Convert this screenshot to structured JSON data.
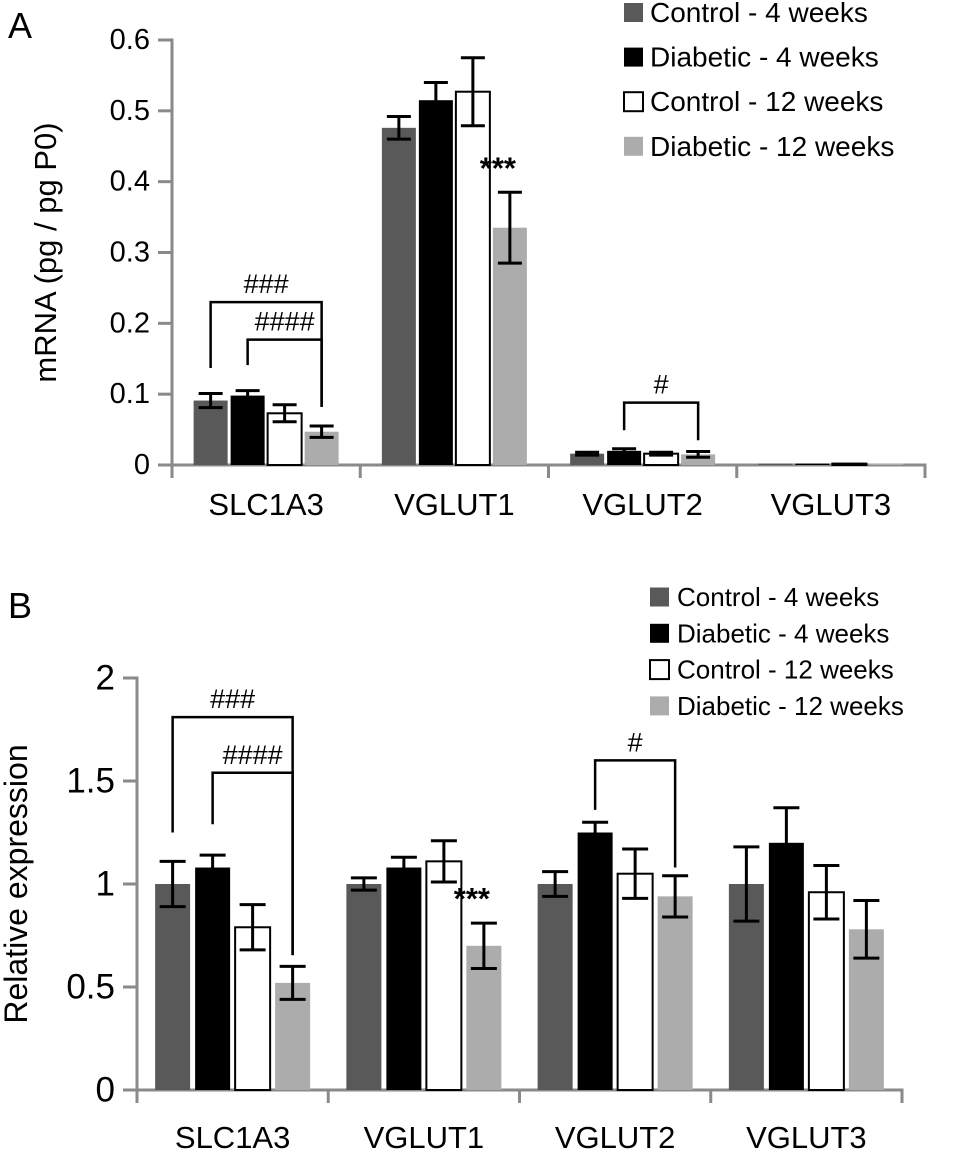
{
  "figure": {
    "panel_letters": [
      "A",
      "B"
    ],
    "colors": {
      "axis": "#8a8a8a",
      "text": "#000000",
      "error_bar": "#000000",
      "bracket": "#000000"
    }
  },
  "chart_data": [
    {
      "type": "bar",
      "panel": "A",
      "title": "",
      "xlabel": "",
      "ylabel": "mRNA (pg / pg P0)",
      "categories": [
        "SLC1A3",
        "VGLUT1",
        "VGLUT2",
        "VGLUT3"
      ],
      "ylim": [
        0,
        0.6
      ],
      "yticks": [
        {
          "value": 0,
          "label": "0"
        },
        {
          "value": 0.1,
          "label": "0.1"
        },
        {
          "value": 0.2,
          "label": "0.2"
        },
        {
          "value": 0.3,
          "label": "0.3"
        },
        {
          "value": 0.4,
          "label": "0.4"
        },
        {
          "value": 0.5,
          "label": "0.5"
        },
        {
          "value": 0.6,
          "label": "0.6"
        }
      ],
      "grid": false,
      "legend_position": "top-right",
      "series": [
        {
          "name": "Control - 4 weeks",
          "color": "#595959",
          "border": null,
          "values": [
            0.091,
            0.476,
            0.016,
            0.002
          ],
          "errors": [
            0.01,
            0.016,
            0.002,
            0
          ]
        },
        {
          "name": "Diabetic - 4 weeks",
          "color": "#000000",
          "border": null,
          "values": [
            0.098,
            0.515,
            0.02,
            0.002
          ],
          "errors": [
            0.007,
            0.025,
            0.003,
            0
          ]
        },
        {
          "name": "Control - 12 weeks",
          "color": "#ffffff",
          "border": "#000000",
          "values": [
            0.073,
            0.527,
            0.016,
            0.002
          ],
          "errors": [
            0.012,
            0.048,
            0.002,
            0
          ]
        },
        {
          "name": "Diabetic - 12 weeks",
          "color": "#acacac",
          "border": null,
          "values": [
            0.047,
            0.335,
            0.015,
            0.002
          ],
          "errors": [
            0.008,
            0.05,
            0.004,
            0
          ]
        }
      ],
      "annotations": {
        "brackets": [
          {
            "label": "###",
            "category": "SLC1A3",
            "from_series": 0,
            "to_series": 3,
            "top": 0.23,
            "left_drop": 0.137,
            "right_drop": 0.082
          },
          {
            "label": "####",
            "category": "SLC1A3",
            "from_series": 1,
            "to_series": 3,
            "top": 0.177,
            "left_drop": 0.141,
            "right_drop": 0.082
          },
          {
            "label": "#",
            "category": "VGLUT2",
            "from_series": 1,
            "to_series": 3,
            "top": 0.088,
            "left_drop": 0.049,
            "right_drop": 0.035
          }
        ],
        "stars": [
          {
            "label": "***",
            "category": "VGLUT1",
            "series": 3
          }
        ]
      }
    },
    {
      "type": "bar",
      "panel": "B",
      "title": "",
      "xlabel": "",
      "ylabel": "Relative expression",
      "categories": [
        "SLC1A3",
        "VGLUT1",
        "VGLUT2",
        "VGLUT3"
      ],
      "ylim": [
        0,
        2
      ],
      "yticks": [
        {
          "value": 0,
          "label": "0"
        },
        {
          "value": 0.5,
          "label": "0.5"
        },
        {
          "value": 1,
          "label": "1"
        },
        {
          "value": 1.5,
          "label": "1.5"
        },
        {
          "value": 2,
          "label": "2"
        }
      ],
      "grid": false,
      "legend_position": "top-right",
      "series": [
        {
          "name": "Control - 4 weeks",
          "color": "#595959",
          "border": null,
          "values": [
            1.0,
            1.0,
            1.0,
            1.0
          ],
          "errors": [
            0.11,
            0.03,
            0.06,
            0.18
          ]
        },
        {
          "name": "Diabetic - 4 weeks",
          "color": "#000000",
          "border": null,
          "values": [
            1.08,
            1.08,
            1.25,
            1.2
          ],
          "errors": [
            0.06,
            0.05,
            0.05,
            0.17
          ]
        },
        {
          "name": "Control - 12 weeks",
          "color": "#ffffff",
          "border": "#000000",
          "values": [
            0.79,
            1.11,
            1.05,
            0.96
          ],
          "errors": [
            0.11,
            0.1,
            0.12,
            0.13
          ]
        },
        {
          "name": "Diabetic - 12 weeks",
          "color": "#acacac",
          "border": null,
          "values": [
            0.52,
            0.7,
            0.94,
            0.78
          ],
          "errors": [
            0.08,
            0.11,
            0.1,
            0.14
          ]
        }
      ],
      "annotations": {
        "brackets": [
          {
            "label": "###",
            "category": "SLC1A3",
            "from_series": 0,
            "to_series": 3,
            "top": 1.81,
            "left_drop": 1.25,
            "right_drop": 0.655
          },
          {
            "label": "####",
            "category": "SLC1A3",
            "from_series": 1,
            "to_series": 3,
            "top": 1.54,
            "left_drop": 1.29,
            "right_drop": 0.655
          },
          {
            "label": "#",
            "category": "VGLUT2",
            "from_series": 1,
            "to_series": 3,
            "top": 1.6,
            "left_drop": 1.36,
            "right_drop": 1.08
          }
        ],
        "stars": [
          {
            "label": "***",
            "category": "VGLUT1",
            "series": 3
          }
        ]
      }
    }
  ]
}
